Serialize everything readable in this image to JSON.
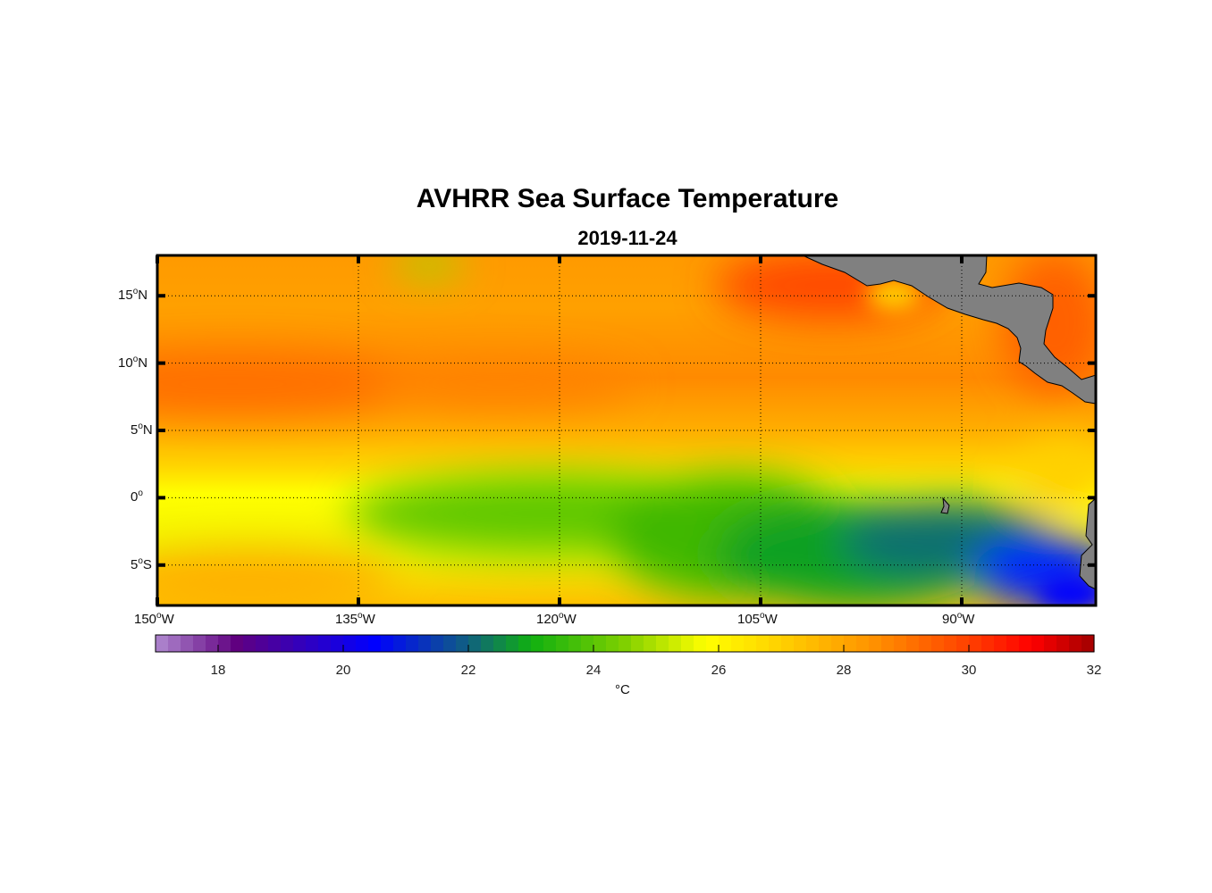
{
  "title": "AVHRR Sea Surface Temperature",
  "subtitle": "2019-11-24",
  "map": {
    "lon_range": [
      -150,
      -80
    ],
    "lat_range": [
      -8,
      18
    ],
    "lat_ticks": [
      {
        "num": "15",
        "hem": "N",
        "v": 15
      },
      {
        "num": "10",
        "hem": "N",
        "v": 10
      },
      {
        "num": "5",
        "hem": "N",
        "v": 5
      },
      {
        "num": "0",
        "hem": "",
        "v": 0
      },
      {
        "num": "5",
        "hem": "S",
        "v": -5
      }
    ],
    "lon_ticks": [
      {
        "num": "150",
        "hem": "W",
        "v": -150
      },
      {
        "num": "135",
        "hem": "W",
        "v": -135
      },
      {
        "num": "120",
        "hem": "W",
        "v": -120
      },
      {
        "num": "105",
        "hem": "W",
        "v": -105
      },
      {
        "num": "90",
        "hem": "W",
        "v": -90
      }
    ],
    "land_color": "#808080"
  },
  "colorbar": {
    "min": 17,
    "max": 32,
    "ticks": [
      "18",
      "20",
      "22",
      "24",
      "26",
      "28",
      "30",
      "32"
    ],
    "unit": "°C",
    "stops": [
      [
        17,
        "#b08ad0"
      ],
      [
        18.3,
        "#600080"
      ],
      [
        20.5,
        "#0000ff"
      ],
      [
        22,
        "#106080"
      ],
      [
        23,
        "#10b010"
      ],
      [
        24.5,
        "#80d000"
      ],
      [
        25.8,
        "#ffff00"
      ],
      [
        27,
        "#ffd000"
      ],
      [
        28.5,
        "#ff9000"
      ],
      [
        30,
        "#ff4000"
      ],
      [
        31,
        "#ff0000"
      ],
      [
        32,
        "#a00000"
      ]
    ]
  }
}
